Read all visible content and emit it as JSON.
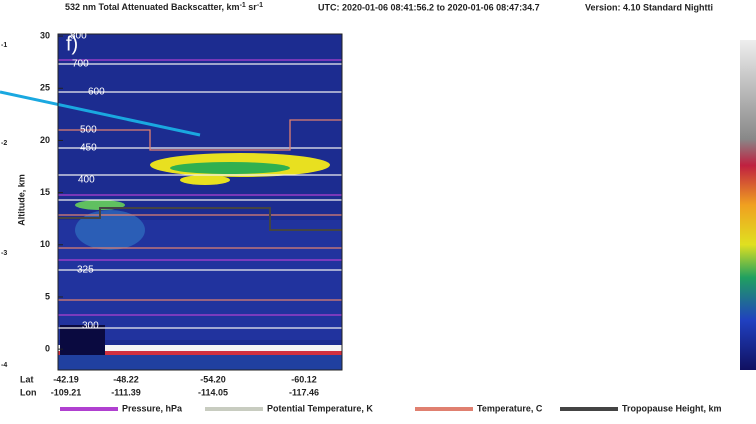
{
  "chart_data": {
    "type": "image",
    "title": [
      "532 nm Total Attenuated Backscatter, km",
      "-1",
      " sr",
      "-1"
    ],
    "utc": "UTC:  2020-01-06 08:41:56.2  to  2020-01-06 08:47:34.7",
    "version": "Version: 4.10  Standard  Nightti",
    "panel_label": "f)",
    "y_label": "Altitude, km",
    "ylim": [
      -2,
      30.2
    ],
    "yticks": [
      0,
      5,
      10,
      15,
      20,
      25,
      30
    ],
    "x_row_labels": [
      "Lat",
      "Lon"
    ],
    "x_tick_labels": [
      {
        "lat": "-42.19",
        "lon": "-109.21"
      },
      {
        "lat": "-48.22",
        "lon": "-111.39"
      },
      {
        "lat": "-54.20",
        "lon": "-114.05"
      },
      {
        "lat": "-60.12",
        "lon": "-117.46"
      }
    ],
    "contour_labels": [
      "800",
      "700",
      "600",
      "500",
      "450",
      "400",
      "325",
      "300"
    ],
    "left_fragments": [
      "-1",
      "-2",
      "-3",
      "-4"
    ],
    "legend": [
      {
        "name": "Pressure, hPa",
        "color": "#b040d0"
      },
      {
        "name": "Potential Temperature, K",
        "color": "#c8ccc0"
      },
      {
        "name": "Temperature, C",
        "color": "#e08070"
      },
      {
        "name": "Tropopause Height, km",
        "color": "#444444"
      }
    ]
  }
}
